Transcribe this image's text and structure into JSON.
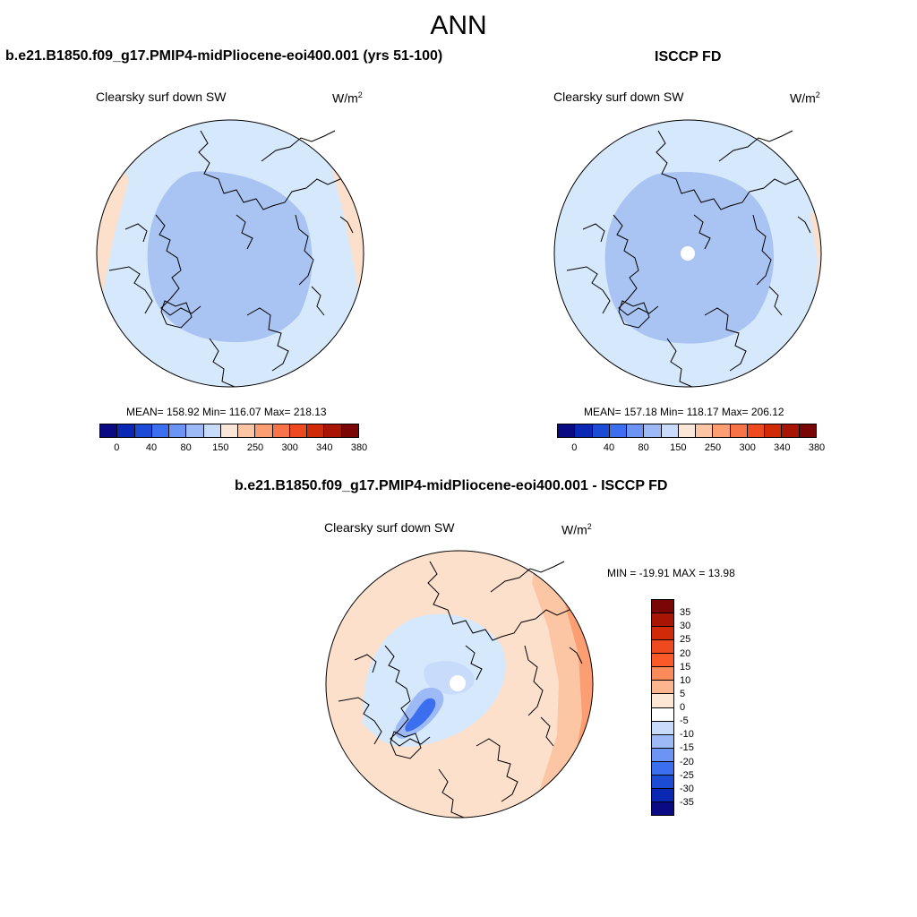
{
  "title": "ANN",
  "units_base": "W/m",
  "units_exp": "2",
  "colors": {
    "ocean_light": "#d6e8fc",
    "inner_blue": "#a9c4f2",
    "warm_pale": "#fce0cc",
    "coast": "#000000"
  },
  "panels": [
    {
      "case_title": "b.e21.B1850.f09_g17.PMIP4-midPliocene-eoi400.001 (yrs 51-100)",
      "variable": "Clearsky surf down SW",
      "stats": "MEAN= 158.92  Min= 116.07  Max= 218.13"
    },
    {
      "case_title": "ISCCP FD",
      "variable": "Clearsky surf down SW",
      "stats": "MEAN= 157.18  Min= 118.17  Max= 206.12"
    }
  ],
  "abs_colorbar": {
    "colors": [
      "#0a0a85",
      "#0a28b4",
      "#1c4bd6",
      "#3c6ff0",
      "#6c94f5",
      "#9dbaf7",
      "#c8dbfa",
      "#fbe7d8",
      "#fcc6a4",
      "#fb9f73",
      "#f87348",
      "#ef4a1f",
      "#d02a08",
      "#a81505",
      "#7a0606"
    ],
    "tick_labels": [
      "0",
      "40",
      "80",
      "150",
      "250",
      "300",
      "340",
      "380"
    ]
  },
  "diff_panel": {
    "case_title": "b.e21.B1850.f09_g17.PMIP4-midPliocene-eoi400.001 - ISCCP FD",
    "variable": "Clearsky surf down SW",
    "minmax": "MIN = -19.91 MAX =  13.98",
    "colorbar": {
      "colors": [
        "#7a0606",
        "#a81505",
        "#d02a08",
        "#ef4a1f",
        "#fb5a28",
        "#fb8a5a",
        "#fcb58e",
        "#fde6d4",
        "#ffffff",
        "#c8dbfa",
        "#9dbaf7",
        "#6c94f5",
        "#3c6ff0",
        "#1c4bd6",
        "#0a28b4",
        "#0a0a85"
      ],
      "tick_labels": [
        "35",
        "30",
        "25",
        "20",
        "15",
        "10",
        "5",
        "0",
        "-5",
        "-10",
        "-15",
        "-20",
        "-25",
        "-30",
        "-35"
      ]
    }
  }
}
